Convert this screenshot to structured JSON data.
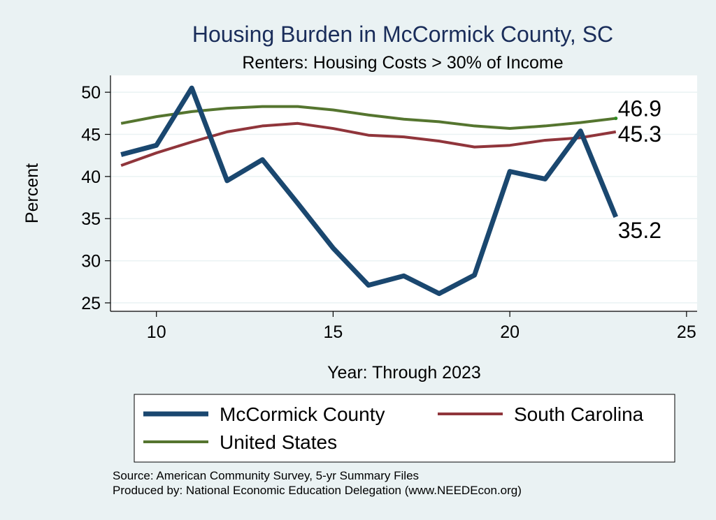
{
  "chart_data": {
    "type": "line",
    "title": "Housing Burden in McCormick County, SC",
    "subtitle": "Renters: Housing Costs > 30% of Income",
    "xlabel": "Year: Through 2023",
    "ylabel": "Percent",
    "xlim": [
      8.7,
      25.3
    ],
    "ylim": [
      24,
      52
    ],
    "xticks": [
      10,
      15,
      20,
      25
    ],
    "yticks": [
      25,
      30,
      35,
      40,
      45,
      50
    ],
    "grid": true,
    "legend_position": "bottom",
    "x": [
      9,
      10,
      11,
      12,
      13,
      14,
      15,
      16,
      17,
      18,
      19,
      20,
      21,
      22,
      23
    ],
    "series": [
      {
        "name": "McCormick County",
        "color": "#1a476f",
        "values": [
          42.6,
          43.7,
          50.5,
          39.5,
          42.0,
          36.8,
          31.5,
          27.1,
          28.2,
          26.1,
          28.3,
          40.6,
          39.7,
          45.4,
          35.2
        ],
        "end_label": "35.2"
      },
      {
        "name": "South Carolina",
        "color": "#90353b",
        "values": [
          41.3,
          42.8,
          44.1,
          45.3,
          46.0,
          46.3,
          45.7,
          44.9,
          44.7,
          44.2,
          43.5,
          43.7,
          44.3,
          44.6,
          45.3
        ],
        "end_label": "45.3"
      },
      {
        "name": "United States",
        "color": "#55752f",
        "values": [
          46.3,
          47.1,
          47.7,
          48.1,
          48.3,
          48.3,
          47.9,
          47.3,
          46.8,
          46.5,
          46.0,
          45.7,
          46.0,
          46.4,
          46.9
        ],
        "end_label": "46.9"
      }
    ]
  },
  "source_lines": [
    "Source: American Community Survey, 5-yr Summary Files",
    "Produced by: National Economic Education Delegation (www.NEEDEcon.org)"
  ]
}
